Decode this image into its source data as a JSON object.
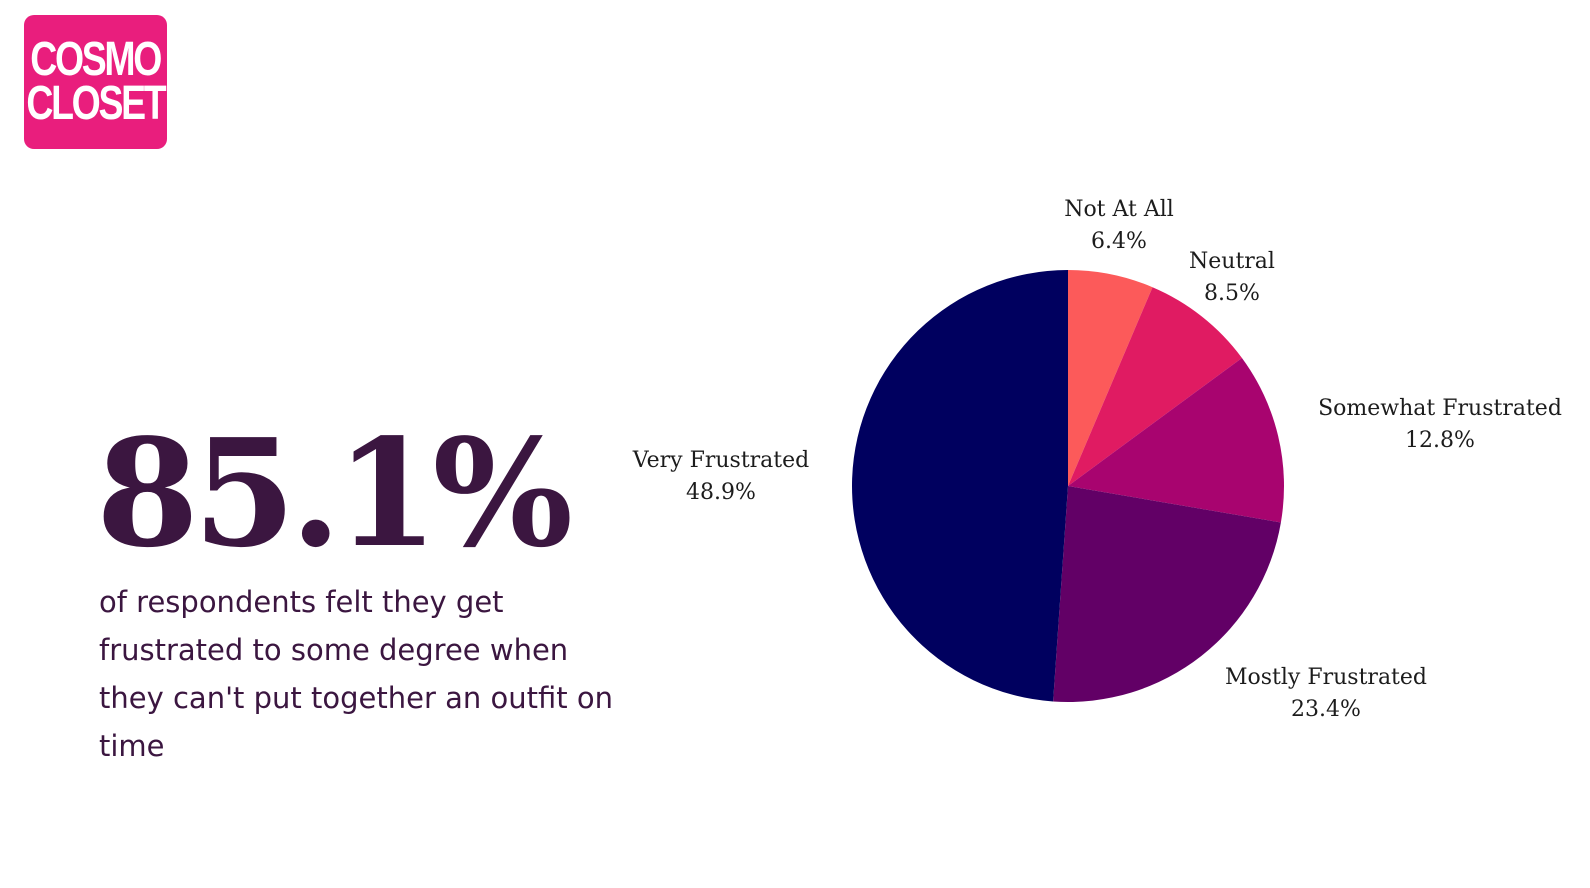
{
  "logo": {
    "line1": "COSMO",
    "line2": "CLOSET",
    "background": "#e91e7d"
  },
  "headline": {
    "value": "85.1%",
    "color": "#3b1640"
  },
  "description": "of respondents felt they get frustrated to some degree when they can't put together an outfit on time",
  "chart_data": {
    "type": "pie",
    "start_angle_deg": 0,
    "direction": "clockwise",
    "slices": [
      {
        "label": "Not At All",
        "value": 6.4,
        "value_label": "6.4%",
        "color": "#fc5a5a"
      },
      {
        "label": "Neutral",
        "value": 8.5,
        "value_label": "8.5%",
        "color": "#e01b62"
      },
      {
        "label": "Somewhat Frustrated",
        "value": 12.8,
        "value_label": "12.8%",
        "color": "#a8046f"
      },
      {
        "label": "Mostly Frustrated",
        "value": 23.4,
        "value_label": "23.4%",
        "color": "#620066"
      },
      {
        "label": "Very Frustrated",
        "value": 48.9,
        "value_label": "48.9%",
        "color": "#00005f"
      }
    ]
  }
}
